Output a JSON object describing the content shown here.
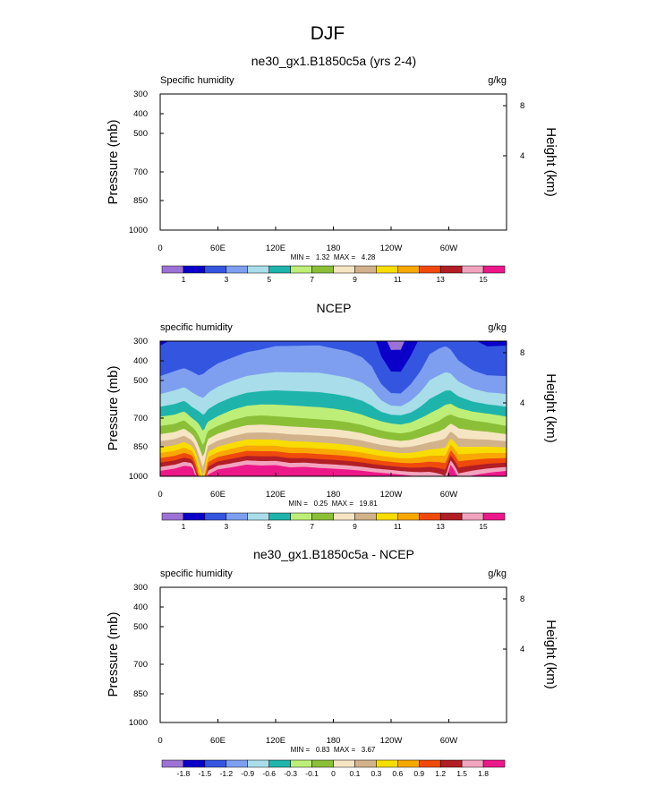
{
  "figure_title": "DJF",
  "colors": [
    "#9c72d6",
    "#0a00c8",
    "#3455e0",
    "#7e9ff0",
    "#a9dde9",
    "#1fb4ab",
    "#bdee78",
    "#8cbf38",
    "#f6e5c3",
    "#d2b28b",
    "#f8dd00",
    "#f8a800",
    "#ef4a0c",
    "#b21e26",
    "#f2a3be",
    "#ec1889"
  ],
  "chart_data": [
    {
      "type": "heatmap",
      "title": "ne30_gx1.B1850c5a (yrs 2-4)",
      "left_label": "Specific humidity",
      "right_label": "g/kg",
      "ylabel": "Pressure (mb)",
      "y2label": "Height (km)",
      "yticks": [
        "300",
        "400",
        "500",
        "700",
        "850",
        "1000"
      ],
      "y2ticks": [
        "8",
        "4"
      ],
      "xticks": [
        "0",
        "60E",
        "120E",
        "180",
        "120W",
        "60W"
      ],
      "min": "1.32",
      "max": "4.28",
      "minmax_text": "MIN =   1.32  MAX =   4.28",
      "colorbar_labels": [
        "1",
        "3",
        "5",
        "7",
        "9",
        "11",
        "13",
        "15"
      ],
      "filled": false
    },
    {
      "type": "heatmap",
      "title": "NCEP",
      "left_label": "specific humidity",
      "right_label": "g/kg",
      "ylabel": "Pressure (mb)",
      "y2label": "Height (km)",
      "yticks": [
        "300",
        "400",
        "500",
        "700",
        "850",
        "1000"
      ],
      "y2ticks": [
        "8",
        "4"
      ],
      "xticks": [
        "0",
        "60E",
        "120E",
        "180",
        "120W",
        "60W"
      ],
      "min": "0.25",
      "max": "19.81",
      "minmax_text": "MIN =   0.25  MAX =   19.81",
      "colorbar_labels": [
        "1",
        "3",
        "5",
        "7",
        "9",
        "11",
        "13",
        "15"
      ],
      "filled": true,
      "contour_levels": [
        0.5,
        1,
        2,
        3,
        4,
        5,
        6,
        7,
        8,
        9,
        10,
        11,
        12,
        13,
        14,
        15
      ],
      "lon_profile": {
        "lon": [
          0,
          15,
          25,
          33,
          40,
          45,
          50,
          60,
          75,
          90,
          105,
          120,
          135,
          150,
          165,
          180,
          195,
          210,
          220,
          230,
          240,
          250,
          260,
          270,
          280,
          290,
          297,
          302,
          310,
          325,
          340,
          360
        ],
        "surface_q": [
          15.5,
          16.2,
          17.0,
          17.2,
          11.0,
          8.5,
          14.5,
          16.0,
          16.5,
          17.2,
          16.8,
          17.0,
          16.3,
          16.5,
          16.2,
          16.0,
          15.8,
          15.5,
          15.2,
          15.0,
          14.8,
          14.5,
          14.2,
          14.0,
          14.0,
          13.5,
          13.0,
          17.0,
          13.5,
          14.2,
          14.8,
          15.5
        ],
        "q700": [
          5.2,
          5.4,
          5.8,
          5.0,
          4.6,
          4.2,
          4.7,
          5.2,
          5.8,
          6.2,
          6.3,
          6.2,
          6.1,
          6.0,
          5.9,
          5.8,
          5.6,
          5.3,
          5.0,
          4.7,
          4.5,
          4.4,
          4.6,
          5.0,
          5.4,
          5.8,
          6.2,
          6.4,
          6.1,
          5.8,
          5.6,
          5.2
        ],
        "q400": [
          1.4,
          1.6,
          1.7,
          1.6,
          1.5,
          1.6,
          1.7,
          1.9,
          2.1,
          2.3,
          2.4,
          2.5,
          2.5,
          2.5,
          2.5,
          2.4,
          2.3,
          2.1,
          1.8,
          1.1,
          0.7,
          0.7,
          1.1,
          1.6,
          2.2,
          2.4,
          2.5,
          2.4,
          2.0,
          1.6,
          1.4,
          1.4
        ]
      }
    },
    {
      "type": "heatmap",
      "title": "ne30_gx1.B1850c5a - NCEP",
      "left_label": "specific humidity",
      "right_label": "g/kg",
      "ylabel": "Pressure (mb)",
      "y2label": "Height (km)",
      "yticks": [
        "300",
        "400",
        "500",
        "700",
        "850",
        "1000"
      ],
      "y2ticks": [
        "8",
        "4"
      ],
      "xticks": [
        "0",
        "60E",
        "120E",
        "180",
        "120W",
        "60W"
      ],
      "min": "0.83",
      "max": "3.67",
      "minmax_text": "MIN =   0.83  MAX =   3.67",
      "colorbar_labels": [
        "-1.8",
        "-1.5",
        "-1.2",
        "-0.9",
        "-0.6",
        "-0.3",
        "-0.1",
        "0",
        "0.1",
        "0.3",
        "0.6",
        "0.9",
        "1.2",
        "1.5",
        "1.8"
      ],
      "filled": false
    }
  ]
}
